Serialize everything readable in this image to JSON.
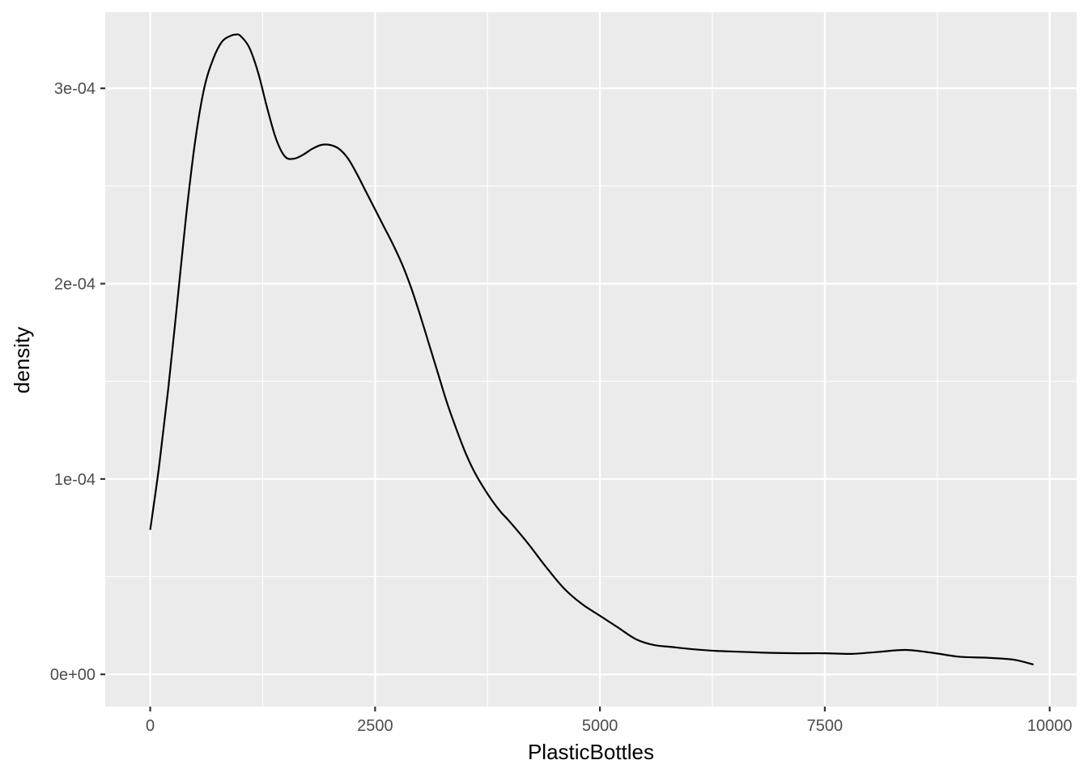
{
  "chart_data": {
    "type": "line",
    "geom": "density",
    "title": "",
    "xlabel": "PlasticBottles",
    "ylabel": "density",
    "xlim": [
      -500,
      10300
    ],
    "ylim": [
      -1.65e-05,
      0.000339
    ],
    "x_ticks": [
      0,
      2500,
      5000,
      7500,
      10000
    ],
    "x_tick_labels": [
      "0",
      "2500",
      "5000",
      "7500",
      "10000"
    ],
    "x_minor_ticks": [
      1250,
      3750,
      6250,
      8750
    ],
    "y_ticks": [
      0,
      0.0001,
      0.0002,
      0.0003
    ],
    "y_tick_labels": [
      "0e+00",
      "1e-04",
      "2e-04",
      "3e-04"
    ],
    "y_minor_ticks": [
      5e-05,
      0.00015,
      0.00025
    ],
    "grid": true,
    "legend": "none",
    "colors": {
      "panel": "#ebebeb",
      "grid": "#ffffff",
      "line": "#000000",
      "tick_text": "#4d4d4d",
      "axis_title": "#000000"
    },
    "series": [
      {
        "x": [
          0,
          100,
          200,
          300,
          400,
          500,
          600,
          700,
          800,
          900,
          950,
          1000,
          1100,
          1200,
          1300,
          1400,
          1500,
          1600,
          1700,
          1800,
          1900,
          2000,
          2100,
          2200,
          2300,
          2400,
          2500,
          2600,
          2700,
          2800,
          2900,
          3000,
          3100,
          3200,
          3300,
          3400,
          3500,
          3600,
          3700,
          3800,
          3900,
          4000,
          4200,
          4400,
          4600,
          4800,
          5000,
          5200,
          5400,
          5600,
          5800,
          6000,
          6300,
          6600,
          6900,
          7200,
          7500,
          7800,
          8100,
          8400,
          8700,
          9000,
          9300,
          9600,
          9820
        ],
        "y": [
          7.4e-05,
          0.000107,
          0.000146,
          0.00019,
          0.000235,
          0.000273,
          0.0003,
          0.000315,
          0.000324,
          0.000327,
          0.0003275,
          0.000327,
          0.000321,
          0.000308,
          0.00029,
          0.000274,
          0.000265,
          0.000264,
          0.000266,
          0.000269,
          0.000271,
          0.000271,
          0.000269,
          0.000264,
          0.000256,
          0.000247,
          0.000238,
          0.000229,
          0.00022,
          0.00021,
          0.000198,
          0.000184,
          0.000169,
          0.000154,
          0.000139,
          0.000126,
          0.000114,
          0.000104,
          9.6e-05,
          8.9e-05,
          8.3e-05,
          7.8e-05,
          6.7e-05,
          5.5e-05,
          4.4e-05,
          3.6e-05,
          3e-05,
          2.4e-05,
          1.8e-05,
          1.5e-05,
          1.4e-05,
          1.3e-05,
          1.2e-05,
          1.15e-05,
          1.1e-05,
          1.08e-05,
          1.08e-05,
          1.05e-05,
          1.15e-05,
          1.25e-05,
          1.1e-05,
          9e-06,
          8.5e-06,
          7.5e-06,
          5e-06
        ]
      }
    ]
  }
}
